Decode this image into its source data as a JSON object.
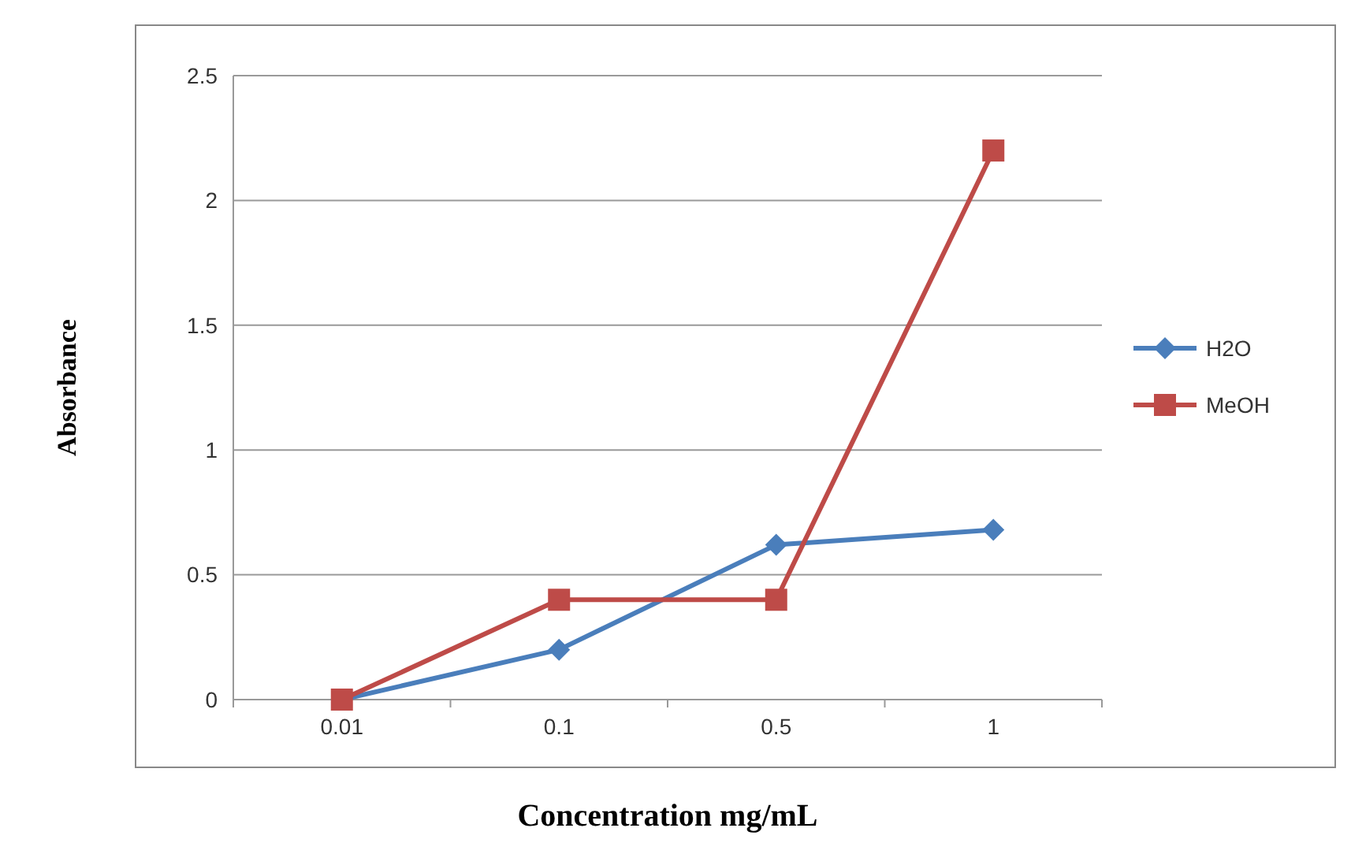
{
  "chart_data": {
    "type": "line",
    "xlabel": "Concentration mg/mL",
    "ylabel": "Absorbance",
    "categories": [
      "0.01",
      "0.1",
      "0.5",
      "1"
    ],
    "series": [
      {
        "name": "H2O",
        "color": "#4a7ebb",
        "values": [
          0,
          0.2,
          0.62,
          0.68
        ],
        "marker": "diamond"
      },
      {
        "name": "MeOH",
        "color": "#be4b48",
        "values": [
          0,
          0.4,
          0.4,
          2.2
        ],
        "marker": "square"
      }
    ],
    "ylim": [
      0,
      2.5
    ],
    "yticks": [
      0,
      0.5,
      1,
      1.5,
      2,
      2.5
    ],
    "grid": "y",
    "legend": "right"
  }
}
